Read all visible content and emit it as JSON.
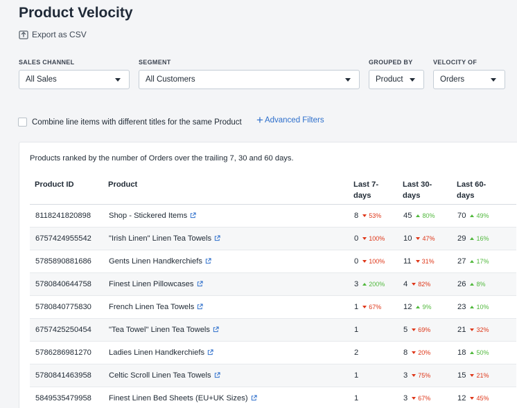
{
  "page": {
    "title": "Product Velocity",
    "export_label": "Export as CSV"
  },
  "filters": {
    "sales_channel": {
      "label": "SALES CHANNEL",
      "value": "All Sales"
    },
    "segment": {
      "label": "SEGMENT",
      "value": "All Customers"
    },
    "grouped_by": {
      "label": "GROUPED BY",
      "value": "Product"
    },
    "velocity_of": {
      "label": "VELOCITY OF",
      "value": "Orders"
    }
  },
  "options": {
    "combine_label": "Combine line items with different titles for the same Product",
    "advanced_filters": "Advanced Filters"
  },
  "table": {
    "description": "Products ranked by the number of Orders over the trailing 7, 30 and 60 days.",
    "headers": {
      "product_id": "Product ID",
      "product": "Product",
      "d7_line1": "Last 7-",
      "d30_line1": "Last 30-",
      "d60_line1": "Last 60-",
      "days": "days"
    },
    "rows": [
      {
        "id": "8118241820898",
        "product": "Shop - Stickered Items",
        "d7": "8",
        "d7c": "53%",
        "d7d": "down",
        "d30": "45",
        "d30c": "80%",
        "d30d": "up",
        "d60": "70",
        "d60c": "49%",
        "d60d": "up"
      },
      {
        "id": "6757424955542",
        "product": "\"Irish Linen\" Linen Tea Towels",
        "d7": "0",
        "d7c": "100%",
        "d7d": "down",
        "d30": "10",
        "d30c": "47%",
        "d30d": "down",
        "d60": "29",
        "d60c": "16%",
        "d60d": "up"
      },
      {
        "id": "5785890881686",
        "product": "Gents Linen Handkerchiefs",
        "d7": "0",
        "d7c": "100%",
        "d7d": "down",
        "d30": "11",
        "d30c": "31%",
        "d30d": "down",
        "d60": "27",
        "d60c": "17%",
        "d60d": "up"
      },
      {
        "id": "5780840644758",
        "product": "Finest Linen Pillowcases",
        "d7": "3",
        "d7c": "200%",
        "d7d": "up",
        "d30": "4",
        "d30c": "82%",
        "d30d": "down",
        "d60": "26",
        "d60c": "8%",
        "d60d": "up"
      },
      {
        "id": "5780840775830",
        "product": "French Linen Tea Towels",
        "d7": "1",
        "d7c": "67%",
        "d7d": "down",
        "d30": "12",
        "d30c": "9%",
        "d30d": "up",
        "d60": "23",
        "d60c": "10%",
        "d60d": "up"
      },
      {
        "id": "6757425250454",
        "product": "\"Tea Towel\" Linen Tea Towels",
        "d7": "1",
        "d7c": "",
        "d7d": "",
        "d30": "5",
        "d30c": "69%",
        "d30d": "down",
        "d60": "21",
        "d60c": "32%",
        "d60d": "down"
      },
      {
        "id": "5786286981270",
        "product": "Ladies Linen Handkerchiefs",
        "d7": "2",
        "d7c": "",
        "d7d": "",
        "d30": "8",
        "d30c": "20%",
        "d30d": "down",
        "d60": "18",
        "d60c": "50%",
        "d60d": "up"
      },
      {
        "id": "5780841463958",
        "product": "Celtic Scroll Linen Tea Towels",
        "d7": "1",
        "d7c": "",
        "d7d": "",
        "d30": "3",
        "d30c": "75%",
        "d30d": "down",
        "d60": "15",
        "d60c": "21%",
        "d60d": "down"
      },
      {
        "id": "5849535479958",
        "product": "Finest Linen Bed Sheets (EU+UK Sizes)",
        "d7": "1",
        "d7c": "",
        "d7d": "",
        "d30": "3",
        "d30c": "67%",
        "d30d": "down",
        "d60": "12",
        "d60c": "45%",
        "d60d": "down"
      }
    ]
  },
  "colors": {
    "up": "#50b83c",
    "down": "#de3618",
    "link": "#2c6ecb"
  }
}
